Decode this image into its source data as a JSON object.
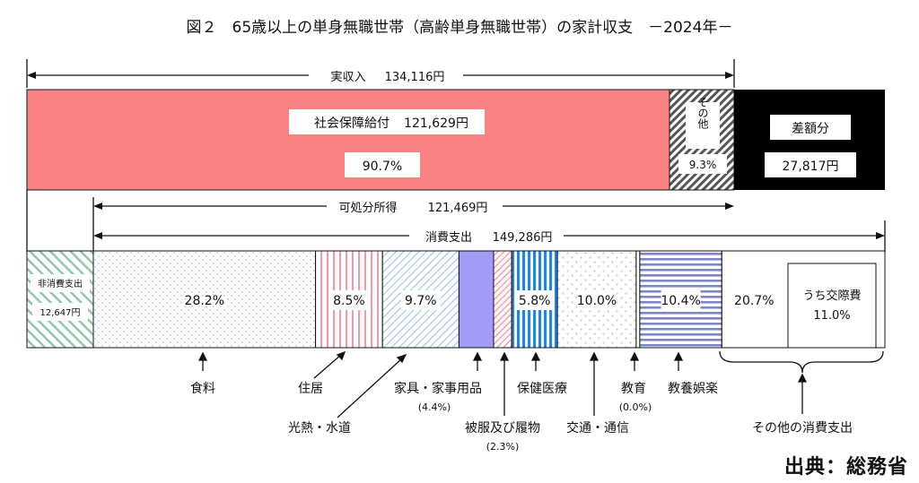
{
  "source": "出典：総務省",
  "chart_data": {
    "type": "bar",
    "title": "図２　65歳以上の単身無職世帯（高齢単身無職世帯）の家計収支　－2024年－",
    "income": {
      "label": "実収入",
      "value_text": "134,116円",
      "value": 134116,
      "segments": [
        {
          "key": "social_security",
          "name": "社会保障給付",
          "value_text": "121,629円",
          "value": 121629,
          "pct_text": "90.7%",
          "pct": 90.7,
          "color": "#f98282"
        },
        {
          "key": "other",
          "name": "その他",
          "pct_text": "9.3%",
          "pct": 9.3,
          "color": "#555555"
        }
      ],
      "deficit": {
        "name": "差額分",
        "value_text": "27,817円",
        "value": 27817,
        "color": "#000000"
      }
    },
    "disposable_income": {
      "label": "可処分所得",
      "value_text": "121,469円",
      "value": 121469
    },
    "consumption": {
      "label": "消費支出",
      "value_text": "149,286円",
      "value": 149286
    },
    "non_consumption": {
      "name": "非消費支出",
      "value_text": "12,647円",
      "value": 12647
    },
    "expenditure": [
      {
        "key": "food",
        "name": "食料",
        "pct_text": "28.2%",
        "pct": 28.2,
        "color": "#b9c7d8"
      },
      {
        "key": "housing",
        "name": "住居",
        "pct_text": "8.5%",
        "pct": 8.5,
        "color": "#f49aa3"
      },
      {
        "key": "utilities",
        "name": "光熱・水道",
        "pct_text": "9.7%",
        "pct": 9.7,
        "color": "#9fc8ef"
      },
      {
        "key": "furniture",
        "name": "家具・家事用品",
        "pct_text": "(4.4%)",
        "pct": 4.4,
        "color": "#a39cf4"
      },
      {
        "key": "clothing",
        "name": "被服及び履物",
        "pct_text": "(2.3%)",
        "pct": 2.3,
        "color": "#f4a0a8"
      },
      {
        "key": "medical",
        "name": "保健医療",
        "pct_text": "5.8%",
        "pct": 5.8,
        "color": "#2f80d8"
      },
      {
        "key": "transport",
        "name": "交通・通信",
        "pct_text": "10.0%",
        "pct": 10.0,
        "color": "#c9c0ec"
      },
      {
        "key": "education",
        "name": "教育",
        "pct_text": "(0.0%)",
        "pct": 0.0,
        "color": "#ffffff"
      },
      {
        "key": "recreation",
        "name": "教養娯楽",
        "pct_text": "10.4%",
        "pct": 10.4,
        "color": "#7f86c8"
      },
      {
        "key": "other_consumption",
        "name": "その他の消費支出",
        "pct_text": "20.7%",
        "pct": 20.7,
        "color": "#ffffff",
        "sub": {
          "name": "うち交際費",
          "pct_text": "11.0%",
          "pct": 11.0
        }
      }
    ]
  }
}
